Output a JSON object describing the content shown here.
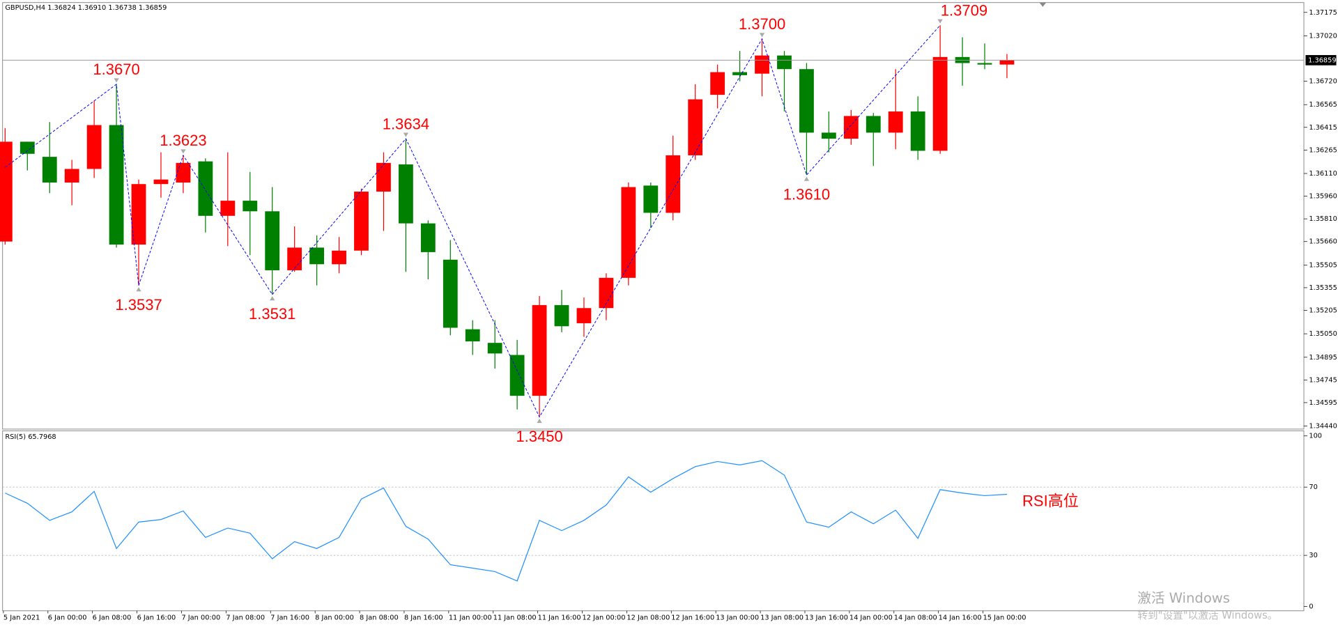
{
  "chart_data": [
    {
      "type": "candlestick",
      "title": "GBPUSD,H4  1.36824 1.36910 1.36738 1.36859",
      "categories": [
        "5 Jan 2021",
        null,
        "6 Jan 00:00",
        null,
        "6 Jan 08:00",
        null,
        "6 Jan 16:00",
        null,
        "7 Jan 00:00",
        null,
        "7 Jan 08:00",
        null,
        "7 Jan 16:00",
        null,
        "8 Jan 00:00",
        null,
        "8 Jan 08:00",
        null,
        "8 Jan 16:00",
        null,
        "11 Jan 00:00",
        null,
        "11 Jan 08:00",
        null,
        "11 Jan 16:00",
        null,
        "12 Jan 00:00",
        null,
        "12 Jan 08:00",
        null,
        "12 Jan 16:00",
        null,
        "13 Jan 00:00",
        null,
        "13 Jan 08:00",
        null,
        "13 Jan 16:00",
        null,
        "14 Jan 00:00",
        null,
        "14 Jan 08:00",
        null,
        "14 Jan 16:00",
        null,
        "15 Jan 00:00",
        null
      ],
      "open": [
        1.3566,
        1.3632,
        1.3622,
        1.3605,
        1.3614,
        1.3643,
        1.3564,
        1.3604,
        1.3605,
        1.3619,
        1.3583,
        1.3593,
        1.3586,
        1.3547,
        1.3562,
        1.3551,
        1.356,
        1.3599,
        1.3617,
        1.3578,
        1.3554,
        1.3508,
        1.3499,
        1.3491,
        1.3464,
        1.3524,
        1.3512,
        1.3522,
        1.3542,
        1.3603,
        1.3585,
        1.3623,
        1.3663,
        1.3678,
        1.3677,
        1.3689,
        1.368,
        1.3638,
        1.3634,
        1.3649,
        1.3638,
        1.3652,
        1.3626,
        1.3688,
        1.3684,
        1.3683
      ],
      "high": [
        1.3641,
        1.3632,
        1.3645,
        1.362,
        1.3659,
        1.367,
        1.3607,
        1.3625,
        1.3623,
        1.3621,
        1.3625,
        1.3612,
        1.3602,
        1.3576,
        1.357,
        1.3569,
        1.3601,
        1.3625,
        1.3634,
        1.358,
        1.3567,
        1.3514,
        1.3514,
        1.3501,
        1.353,
        1.3534,
        1.3529,
        1.3545,
        1.3605,
        1.3605,
        1.3636,
        1.367,
        1.3683,
        1.3692,
        1.37,
        1.3692,
        1.3684,
        1.3652,
        1.3653,
        1.3651,
        1.368,
        1.3662,
        1.3709,
        1.3701,
        1.3697,
        1.369
      ],
      "low": [
        1.3564,
        1.3613,
        1.3598,
        1.359,
        1.3608,
        1.3562,
        1.3537,
        1.3595,
        1.3598,
        1.3572,
        1.3563,
        1.3557,
        1.3531,
        1.3546,
        1.3537,
        1.3545,
        1.3557,
        1.3573,
        1.3546,
        1.3541,
        1.3504,
        1.3491,
        1.3482,
        1.3455,
        1.345,
        1.3506,
        1.3503,
        1.3514,
        1.3537,
        1.3575,
        1.358,
        1.362,
        1.3654,
        1.3672,
        1.3662,
        1.3652,
        1.361,
        1.3625,
        1.363,
        1.3616,
        1.3627,
        1.362,
        1.3624,
        1.3669,
        1.368,
        1.3674
      ],
      "close": [
        1.3632,
        1.3624,
        1.3605,
        1.3614,
        1.3643,
        1.3564,
        1.3604,
        1.3607,
        1.3618,
        1.3583,
        1.3593,
        1.3586,
        1.3547,
        1.3562,
        1.3551,
        1.356,
        1.3599,
        1.3618,
        1.3578,
        1.3559,
        1.3509,
        1.35,
        1.3492,
        1.3464,
        1.3524,
        1.351,
        1.3522,
        1.3542,
        1.3602,
        1.3585,
        1.3623,
        1.366,
        1.3678,
        1.3676,
        1.3689,
        1.368,
        1.3638,
        1.3634,
        1.3649,
        1.3638,
        1.3652,
        1.3626,
        1.3688,
        1.3684,
        1.3683,
        1.3686
      ],
      "up_color": "#ff0000",
      "down_color": "#008000",
      "current_price": 1.36859,
      "ylim": [
        1.3442,
        1.3724
      ],
      "yticks": [
        1.37175,
        {
          "value": 1.3702,
          "label": "1.37020"
        },
        {
          "value": 1.3672,
          "label": "1.36720"
        },
        1.36565,
        1.36415,
        1.36265,
        {
          "value": 1.3611,
          "label": "1.36110"
        },
        {
          "value": 1.3596,
          "label": "1.35960"
        },
        {
          "value": 1.3581,
          "label": "1.35810"
        },
        {
          "value": 1.3566,
          "label": "1.35660"
        },
        1.35505,
        1.35355,
        1.35205,
        {
          "value": 1.3505,
          "label": "1.35050"
        },
        1.34895,
        1.34745,
        1.34595,
        {
          "value": 1.3444,
          "label": "1.34440"
        }
      ],
      "zigzag": {
        "color": "#0000ff",
        "label_color": "#ff0000",
        "indices": [
          0,
          5,
          6,
          8,
          12,
          18,
          24,
          34,
          36,
          42
        ],
        "values": [
          1.3615,
          1.367,
          1.3537,
          1.3623,
          1.3531,
          1.3634,
          1.345,
          1.37,
          1.361,
          1.3709
        ],
        "value_labels": [
          null,
          "1.3670",
          "1.3537",
          "1.3623",
          "1.3531",
          "1.3634",
          "1.3450",
          "1.3700",
          "1.3610",
          "1.3709"
        ]
      }
    },
    {
      "type": "line",
      "title": "RSI(5) 65.7968",
      "color": "#1e90ff",
      "values": [
        66.5,
        60.5,
        50.5,
        55.5,
        67.5,
        34,
        49.5,
        51,
        56,
        40.5,
        46,
        43,
        28,
        38,
        34,
        40.5,
        63,
        69.5,
        47,
        39.5,
        24.5,
        22.5,
        20.5,
        15,
        50.5,
        44.5,
        50.5,
        59.5,
        76,
        67,
        75,
        82,
        85,
        83,
        85.5,
        77,
        49.5,
        46.5,
        55.5,
        48.5,
        56.5,
        40,
        68.5,
        66.5,
        65,
        65.7968
      ],
      "ylim": [
        -2.5,
        103
      ],
      "yticks": [
        100,
        70,
        30,
        0
      ],
      "levels": [
        70,
        30
      ],
      "annotation": {
        "text": "RSI高位",
        "color": "#ff0000"
      }
    }
  ],
  "watermark": {
    "title": "激活 Windows",
    "subtitle": "转到\"设置\"以激活 Windows。"
  }
}
